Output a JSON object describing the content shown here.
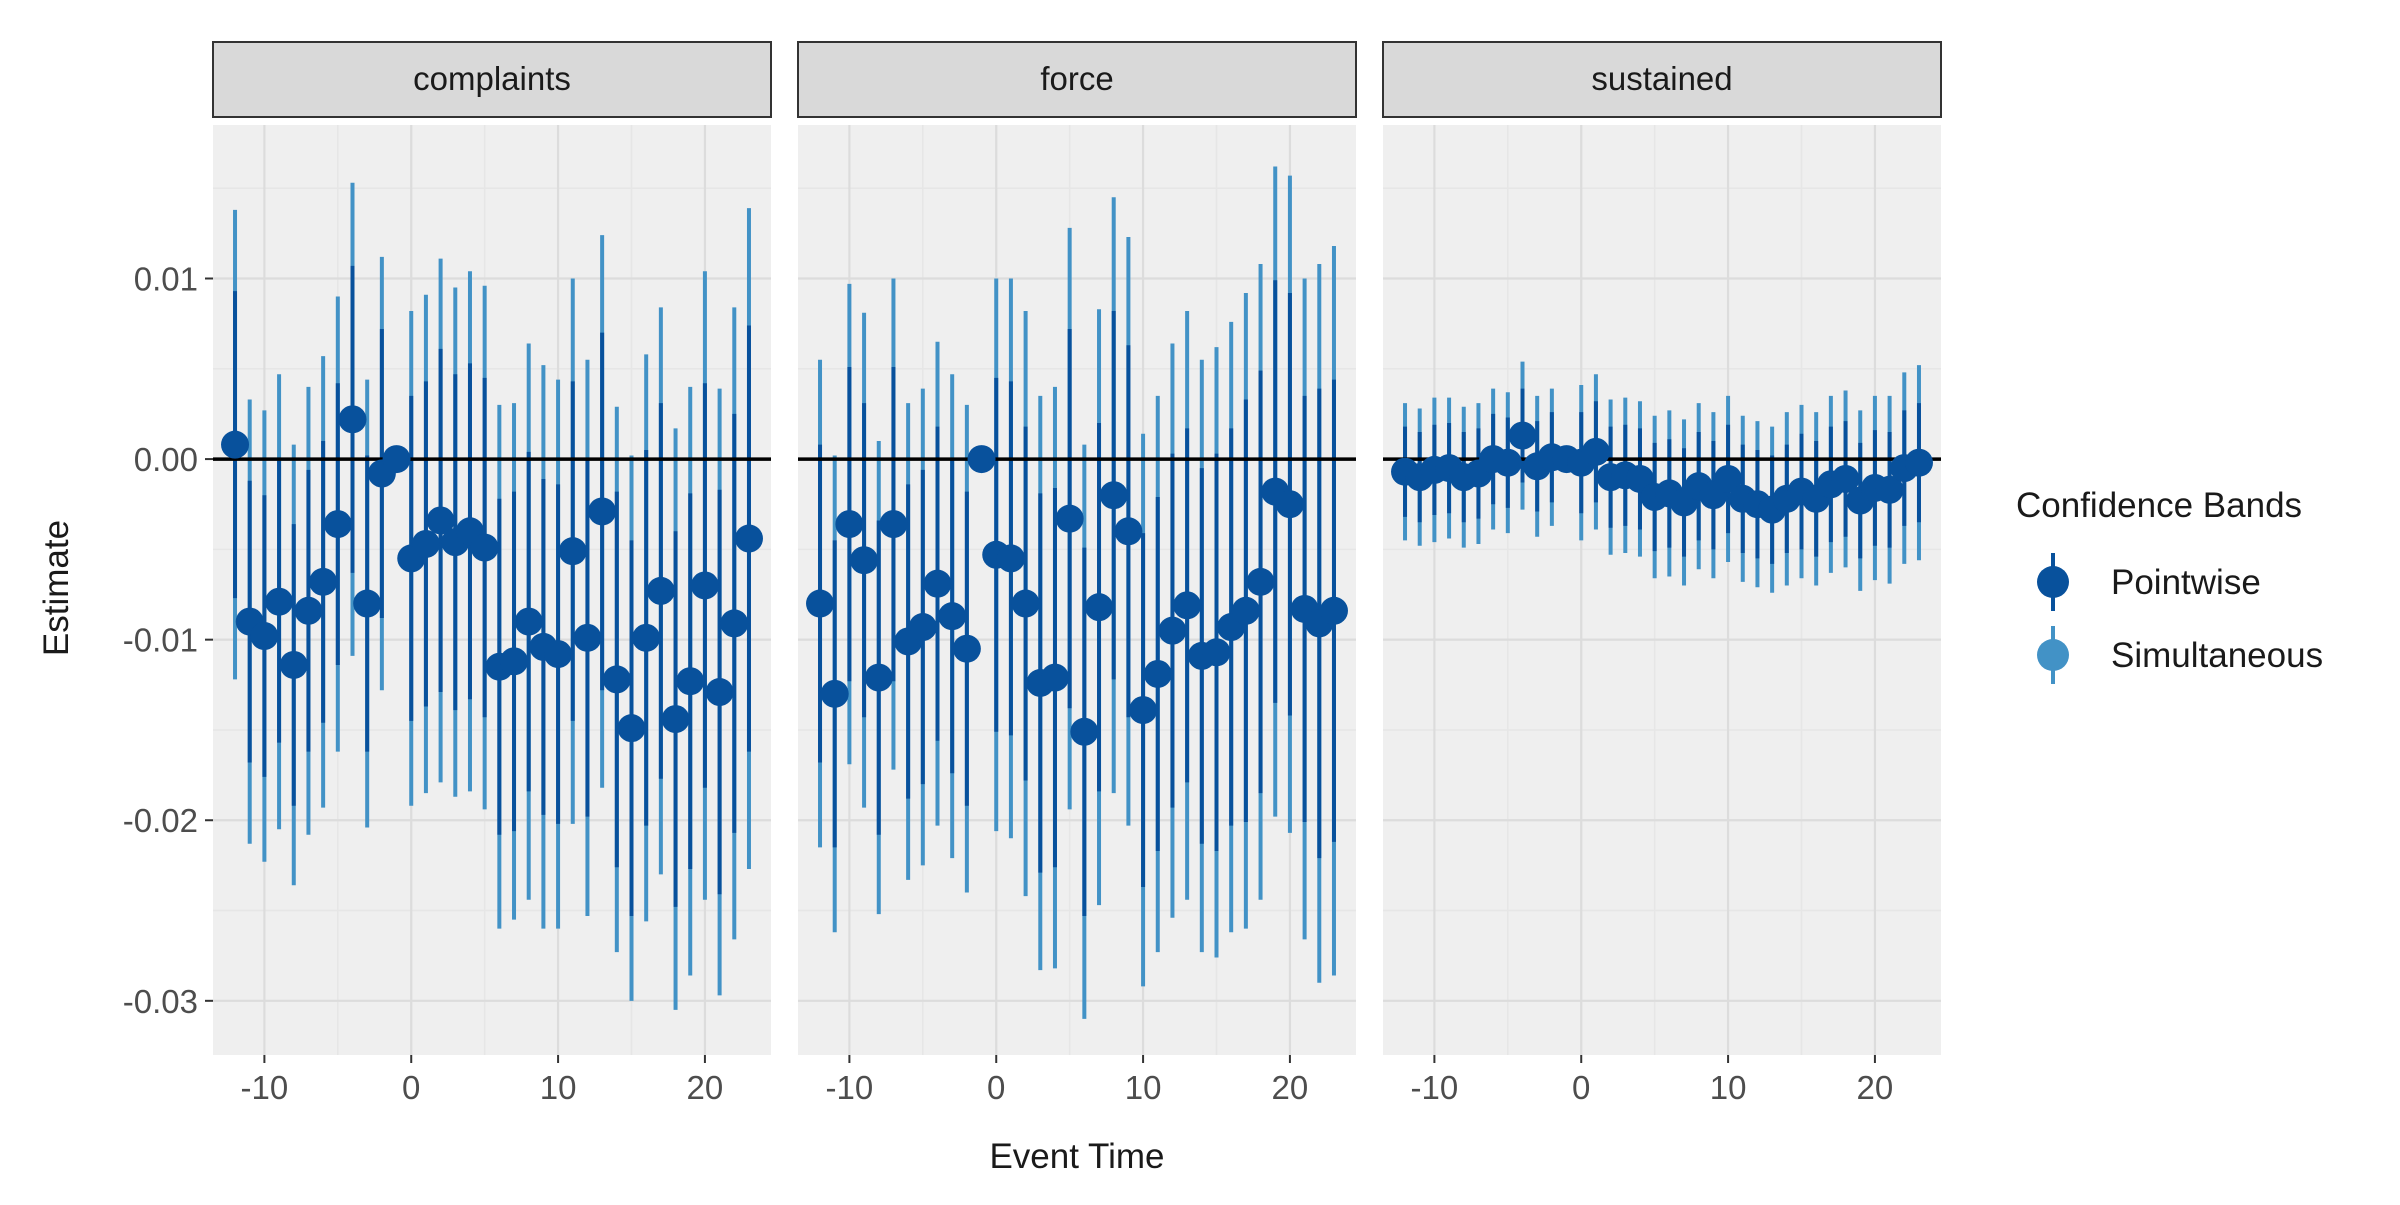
{
  "chart_data": {
    "type": "errorbar-facets",
    "x_label": "Event Time",
    "y_label": "Estimate",
    "ylim": [
      -0.033,
      0.0185
    ],
    "xlim": [
      -13.5,
      24.5
    ],
    "y_ticks": [
      0.01,
      0.0,
      -0.01,
      -0.02,
      -0.03
    ],
    "y_tick_labels": [
      "0.01",
      "0.00",
      "-0.01",
      "-0.02",
      "-0.03"
    ],
    "x_ticks": [
      -10,
      0,
      10,
      20
    ],
    "x_tick_labels": [
      "-10",
      "0",
      "10",
      "20"
    ],
    "reference_line": 0,
    "legend": {
      "title": "Confidence Bands",
      "position": "right",
      "items": [
        {
          "label": "Pointwise",
          "color": "#08519c"
        },
        {
          "label": "Simultaneous",
          "color": "#4292c6"
        }
      ]
    },
    "colors": {
      "pointwise": "#08519c",
      "simultaneous": "#4292c6",
      "point": "#08519c",
      "panel_bg": "#efefef",
      "strip_bg": "#d9d9d9"
    },
    "x": [
      -12,
      -11,
      -10,
      -9,
      -8,
      -7,
      -6,
      -5,
      -4,
      -3,
      -2,
      -1,
      0,
      1,
      2,
      3,
      4,
      5,
      6,
      7,
      8,
      9,
      10,
      11,
      12,
      13,
      14,
      15,
      16,
      17,
      18,
      19,
      20,
      21,
      22,
      23
    ],
    "panels": [
      {
        "label": "complaints",
        "estimate": [
          0.0008,
          -0.009,
          -0.0098,
          -0.0079,
          -0.0114,
          -0.0084,
          -0.0068,
          -0.0036,
          0.0022,
          -0.008,
          -0.0008,
          0.0,
          -0.0055,
          -0.0047,
          -0.0034,
          -0.0046,
          -0.004,
          -0.0049,
          -0.0115,
          -0.0112,
          -0.009,
          -0.0104,
          -0.0108,
          -0.0051,
          -0.0099,
          -0.0029,
          -0.0122,
          -0.0149,
          -0.0099,
          -0.0073,
          -0.0144,
          -0.0123,
          -0.007,
          -0.0129,
          -0.0091,
          -0.0044
        ],
        "pw_half": [
          0.0085,
          0.0078,
          0.0078,
          0.0078,
          0.0078,
          0.0078,
          0.0078,
          0.0078,
          0.0085,
          0.0082,
          0.008,
          0.0,
          0.009,
          0.009,
          0.0095,
          0.0093,
          0.0093,
          0.0094,
          0.0093,
          0.0094,
          0.0094,
          0.0093,
          0.0094,
          0.0094,
          0.0099,
          0.0099,
          0.0104,
          0.0104,
          0.0104,
          0.0104,
          0.0104,
          0.0104,
          0.0112,
          0.0112,
          0.0116,
          0.0118
        ],
        "sim_half": [
          0.013,
          0.0123,
          0.0125,
          0.0126,
          0.0122,
          0.0124,
          0.0125,
          0.0126,
          0.0131,
          0.0124,
          0.012,
          0.0,
          0.0137,
          0.0138,
          0.0145,
          0.0141,
          0.0144,
          0.0145,
          0.0145,
          0.0143,
          0.0154,
          0.0156,
          0.0152,
          0.0151,
          0.0154,
          0.0153,
          0.0151,
          0.0151,
          0.0157,
          0.0157,
          0.0161,
          0.0163,
          0.0174,
          0.0168,
          0.0175,
          0.0183
        ]
      },
      {
        "label": "force",
        "estimate": [
          -0.008,
          -0.013,
          -0.0036,
          -0.0056,
          -0.0121,
          -0.0036,
          -0.0101,
          -0.0093,
          -0.0069,
          -0.0087,
          -0.0105,
          0.0,
          -0.0053,
          -0.0055,
          -0.008,
          -0.0124,
          -0.0121,
          -0.0033,
          -0.0151,
          -0.0082,
          -0.002,
          -0.004,
          -0.0139,
          -0.0119,
          -0.0095,
          -0.0081,
          -0.0109,
          -0.0107,
          -0.0093,
          -0.0084,
          -0.0068,
          -0.0018,
          -0.0025,
          -0.0083,
          -0.0091,
          -0.0084
        ],
        "pw_half": [
          0.0088,
          0.0085,
          0.0087,
          0.0087,
          0.0087,
          0.0087,
          0.0087,
          0.0087,
          0.0087,
          0.0087,
          0.0087,
          0.0,
          0.0098,
          0.0098,
          0.0098,
          0.0105,
          0.0105,
          0.0105,
          0.0102,
          0.0102,
          0.0102,
          0.0103,
          0.0098,
          0.0098,
          0.0098,
          0.0098,
          0.0104,
          0.011,
          0.011,
          0.0117,
          0.0117,
          0.0117,
          0.0117,
          0.0118,
          0.013,
          0.0128
        ],
        "sim_half": [
          0.0135,
          0.0132,
          0.0133,
          0.0137,
          0.0131,
          0.0136,
          0.0132,
          0.0132,
          0.0134,
          0.0134,
          0.0135,
          0.0,
          0.0153,
          0.0155,
          0.0162,
          0.0159,
          0.0161,
          0.0161,
          0.0159,
          0.0165,
          0.0165,
          0.0163,
          0.0153,
          0.0154,
          0.0159,
          0.0163,
          0.0164,
          0.0169,
          0.0169,
          0.0176,
          0.0176,
          0.018,
          0.0182,
          0.0183,
          0.0199,
          0.0202
        ]
      },
      {
        "label": "sustained",
        "estimate": [
          -0.0007,
          -0.001,
          -0.0006,
          -0.0005,
          -0.001,
          -0.0008,
          0.0,
          -0.0002,
          0.0013,
          -0.0004,
          0.0001,
          0.0,
          -0.0002,
          0.0004,
          -0.001,
          -0.0009,
          -0.0011,
          -0.0021,
          -0.0019,
          -0.0024,
          -0.0015,
          -0.002,
          -0.0011,
          -0.0022,
          -0.0025,
          -0.0028,
          -0.0022,
          -0.0018,
          -0.0022,
          -0.0014,
          -0.0011,
          -0.0023,
          -0.0016,
          -0.0017,
          -0.0005,
          -0.0002
        ],
        "pw_half": [
          0.0025,
          0.0025,
          0.0025,
          0.0025,
          0.0025,
          0.0025,
          0.0025,
          0.0025,
          0.0026,
          0.0025,
          0.0025,
          0.0,
          0.0028,
          0.0028,
          0.0028,
          0.0028,
          0.0028,
          0.003,
          0.003,
          0.003,
          0.003,
          0.003,
          0.003,
          0.003,
          0.003,
          0.003,
          0.003,
          0.0032,
          0.0032,
          0.0032,
          0.0032,
          0.0032,
          0.0032,
          0.0032,
          0.0032,
          0.0033
        ],
        "sim_half": [
          0.0038,
          0.0038,
          0.004,
          0.0039,
          0.0039,
          0.0039,
          0.0039,
          0.0039,
          0.0041,
          0.0039,
          0.0038,
          0.0,
          0.0043,
          0.0043,
          0.0043,
          0.0043,
          0.0043,
          0.0045,
          0.0046,
          0.0046,
          0.0046,
          0.0046,
          0.0046,
          0.0046,
          0.0046,
          0.0046,
          0.0048,
          0.0048,
          0.0048,
          0.0049,
          0.0049,
          0.005,
          0.0051,
          0.0052,
          0.0053,
          0.0054
        ]
      }
    ]
  }
}
